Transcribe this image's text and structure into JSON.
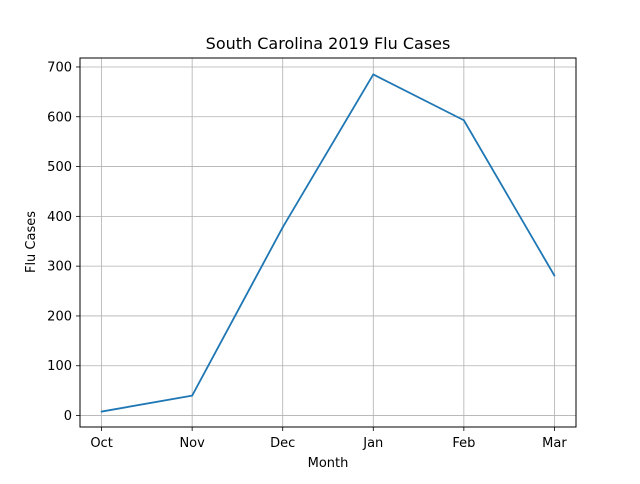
{
  "chart_data": {
    "type": "line",
    "title": "South Carolina 2019 Flu Cases",
    "xlabel": "Month",
    "ylabel": "Flu Cases",
    "categories": [
      "Oct",
      "Nov",
      "Dec",
      "Jan",
      "Feb",
      "Mar"
    ],
    "series": [
      {
        "values": [
          8,
          40,
          378,
          685,
          593,
          281
        ]
      }
    ],
    "ylim": [
      -23,
      718
    ],
    "yticks": [
      0,
      100,
      200,
      300,
      400,
      500,
      600,
      700
    ],
    "grid": true,
    "line_color": "#1f77b4"
  }
}
